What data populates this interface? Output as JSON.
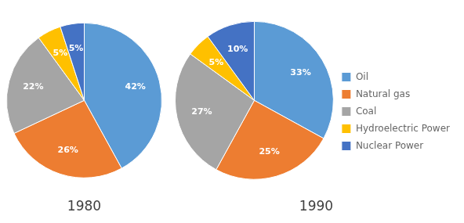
{
  "chart_data": [
    {
      "type": "pie",
      "title": "1980",
      "categories": [
        "Oil",
        "Natural gas",
        "Coal",
        "Hydroelectric Power",
        "Nuclear Power"
      ],
      "values": [
        42,
        26,
        22,
        5,
        5
      ],
      "value_labels": [
        "42%",
        "26%",
        "22%",
        "5%",
        "5%"
      ],
      "colors": [
        "#5B9BD5",
        "#ED7D31",
        "#A5A5A5",
        "#FFC000",
        "#4472C4"
      ],
      "data_labels": true
    },
    {
      "type": "pie",
      "title": "1990",
      "categories": [
        "Oil",
        "Natural gas",
        "Coal",
        "Hydroelectric Power",
        "Nuclear Power"
      ],
      "values": [
        33,
        25,
        27,
        5,
        10
      ],
      "value_labels": [
        "33%",
        "25%",
        "27%",
        "5%",
        "10%"
      ],
      "colors": [
        "#5B9BD5",
        "#ED7D31",
        "#A5A5A5",
        "#FFC000",
        "#4472C4"
      ],
      "data_labels": true,
      "legend": "right"
    }
  ]
}
